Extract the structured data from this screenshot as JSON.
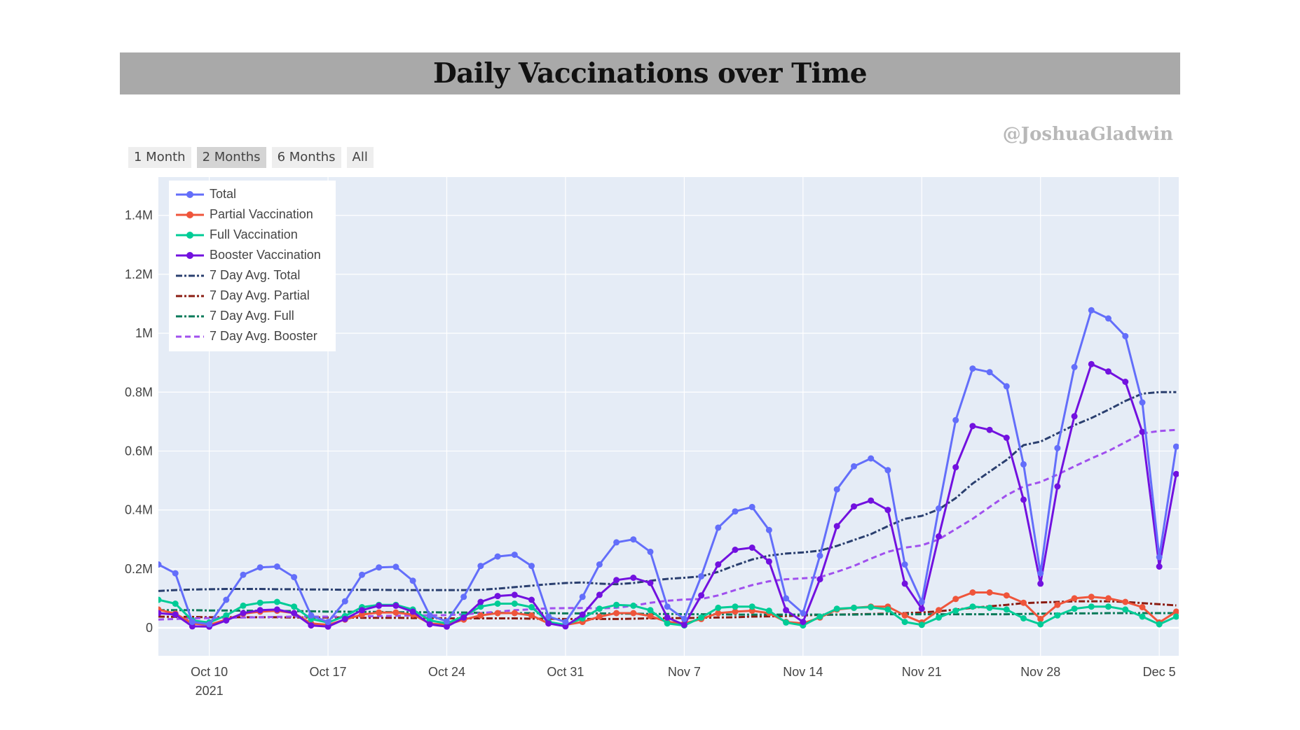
{
  "title": "Daily Vaccinations over Time",
  "watermark": "@JoshuaGladwin",
  "range_buttons": [
    {
      "label": "1 Month",
      "active": false
    },
    {
      "label": "2 Months",
      "active": true
    },
    {
      "label": "6 Months",
      "active": false
    },
    {
      "label": "All",
      "active": false
    }
  ],
  "chart_data": {
    "type": "line",
    "x_start": "2021-10-07",
    "x_end": "2021-12-06",
    "x_tick_labels": [
      "Oct 10",
      "Oct 17",
      "Oct 24",
      "Oct 31",
      "Nov 7",
      "Nov 14",
      "Nov 21",
      "Nov 28",
      "Dec 5"
    ],
    "x_tick_dates": [
      "2021-10-10",
      "2021-10-17",
      "2021-10-24",
      "2021-10-31",
      "2021-11-07",
      "2021-11-14",
      "2021-11-21",
      "2021-11-28",
      "2021-12-05"
    ],
    "x_year_label": "2021",
    "y_ticks": [
      0,
      200000,
      400000,
      600000,
      800000,
      1000000,
      1200000,
      1400000
    ],
    "y_tick_labels": [
      "0",
      "0.2M",
      "0.4M",
      "0.6M",
      "0.8M",
      "1M",
      "1.2M",
      "1.4M"
    ],
    "ylim": [
      -95000,
      1530000
    ],
    "grid": true,
    "legend_position": "top-left",
    "plot_background": "#e5ecf6",
    "series": [
      {
        "name": "Total",
        "color": "#636efa",
        "style": "solid-markers",
        "values": [
          215000,
          185000,
          20000,
          12000,
          95000,
          180000,
          205000,
          208000,
          172000,
          42000,
          20000,
          90000,
          180000,
          205000,
          207000,
          160000,
          42000,
          22000,
          105000,
          210000,
          242000,
          248000,
          210000,
          38000,
          20000,
          105000,
          215000,
          290000,
          300000,
          258000,
          72000,
          30000,
          175000,
          340000,
          395000,
          410000,
          332000,
          100000,
          50000,
          245000,
          470000,
          548000,
          575000,
          535000,
          215000,
          88000,
          405000,
          705000,
          880000,
          868000,
          820000,
          555000,
          185000,
          610000,
          885000,
          1078000,
          1050000,
          990000,
          765000,
          240000,
          615000
        ]
      },
      {
        "name": "Partial Vaccination",
        "color": "#ef553b",
        "style": "solid-markers",
        "values": [
          62000,
          48000,
          15000,
          10000,
          28000,
          48000,
          55000,
          58000,
          50000,
          15000,
          10000,
          28000,
          45000,
          52000,
          52000,
          45000,
          15000,
          10000,
          28000,
          42000,
          50000,
          50000,
          42000,
          15000,
          10000,
          20000,
          38000,
          50000,
          50000,
          40000,
          20000,
          15000,
          30000,
          50000,
          55000,
          58000,
          50000,
          20000,
          15000,
          35000,
          62000,
          68000,
          72000,
          72000,
          42000,
          18000,
          60000,
          98000,
          120000,
          120000,
          110000,
          85000,
          30000,
          78000,
          100000,
          105000,
          100000,
          88000,
          70000,
          18000,
          55000
        ]
      },
      {
        "name": "Full Vaccination",
        "color": "#00cc96",
        "style": "solid-markers",
        "values": [
          95000,
          82000,
          25000,
          18000,
          42000,
          75000,
          85000,
          88000,
          72000,
          30000,
          18000,
          40000,
          70000,
          78000,
          78000,
          62000,
          25000,
          15000,
          40000,
          72000,
          82000,
          82000,
          70000,
          20000,
          10000,
          32000,
          65000,
          78000,
          75000,
          60000,
          15000,
          8000,
          35000,
          68000,
          72000,
          72000,
          58000,
          18000,
          8000,
          38000,
          65000,
          68000,
          70000,
          62000,
          20000,
          10000,
          35000,
          58000,
          72000,
          68000,
          62000,
          32000,
          12000,
          42000,
          65000,
          72000,
          72000,
          62000,
          38000,
          12000,
          38000
        ]
      },
      {
        "name": "Booster Vaccination",
        "color": "#7211df",
        "style": "solid-markers",
        "values": [
          50000,
          45000,
          5000,
          4000,
          25000,
          50000,
          60000,
          62000,
          50000,
          8000,
          4000,
          30000,
          60000,
          75000,
          75000,
          55000,
          12000,
          4000,
          35000,
          88000,
          108000,
          112000,
          95000,
          15000,
          5000,
          45000,
          112000,
          162000,
          170000,
          152000,
          35000,
          10000,
          110000,
          215000,
          265000,
          272000,
          225000,
          60000,
          20000,
          165000,
          345000,
          412000,
          432000,
          400000,
          150000,
          65000,
          310000,
          545000,
          685000,
          672000,
          645000,
          435000,
          150000,
          480000,
          718000,
          895000,
          870000,
          835000,
          665000,
          208000,
          522000
        ]
      },
      {
        "name": "7 Day Avg. Total",
        "color": "#2a3f6f",
        "style": "dashdot",
        "values": [
          125000,
          128000,
          130000,
          131000,
          132000,
          132000,
          132000,
          131000,
          131000,
          130000,
          130000,
          129000,
          129000,
          129000,
          128000,
          128000,
          128000,
          128000,
          128000,
          129000,
          133000,
          138000,
          143000,
          148000,
          152000,
          154000,
          150000,
          148000,
          152000,
          160000,
          166000,
          170000,
          175000,
          190000,
          212000,
          232000,
          245000,
          252000,
          256000,
          262000,
          278000,
          298000,
          318000,
          345000,
          370000,
          380000,
          402000,
          440000,
          490000,
          530000,
          570000,
          620000,
          632000,
          660000,
          688000,
          712000,
          740000,
          770000,
          795000,
          800000,
          800000
        ]
      },
      {
        "name": "7 Day Avg. Partial",
        "color": "#8b1c12",
        "style": "dashdot",
        "values": [
          38000,
          37000,
          37000,
          36000,
          36000,
          36000,
          36000,
          36000,
          35000,
          35000,
          35000,
          35000,
          34000,
          34000,
          34000,
          33000,
          33000,
          32000,
          32000,
          32000,
          32000,
          32000,
          31000,
          31000,
          30000,
          30000,
          30000,
          30000,
          31000,
          32000,
          33000,
          33000,
          34000,
          35000,
          36000,
          38000,
          39000,
          40000,
          42000,
          44000,
          45000,
          46000,
          47000,
          48000,
          50000,
          52000,
          56000,
          62000,
          68000,
          73000,
          78000,
          84000,
          86000,
          88000,
          90000,
          90000,
          90000,
          88000,
          84000,
          80000,
          76000
        ]
      },
      {
        "name": "7 Day Avg. Full",
        "color": "#0a7a5a",
        "style": "dashdot",
        "values": [
          60000,
          60000,
          60000,
          59000,
          59000,
          58000,
          58000,
          57000,
          57000,
          56000,
          55000,
          55000,
          54000,
          54000,
          53000,
          53000,
          53000,
          52000,
          52000,
          51000,
          51000,
          50000,
          50000,
          50000,
          49000,
          49000,
          49000,
          48000,
          48000,
          47000,
          47000,
          46000,
          46000,
          46000,
          45000,
          45000,
          45000,
          45000,
          45000,
          45000,
          45000,
          45000,
          46000,
          46000,
          46000,
          46000,
          46000,
          46000,
          46000,
          46000,
          46000,
          47000,
          48000,
          48000,
          49000,
          49000,
          50000,
          50000,
          50000,
          50000,
          50000
        ]
      },
      {
        "name": "7 Day Avg. Booster",
        "color": "#a050ee",
        "style": "dash",
        "values": [
          28000,
          30000,
          32000,
          33000,
          34000,
          35000,
          36000,
          37000,
          38000,
          38000,
          38000,
          38000,
          39000,
          40000,
          41000,
          42000,
          42000,
          43000,
          46000,
          50000,
          55000,
          60000,
          63000,
          66000,
          67000,
          67000,
          66000,
          68000,
          75000,
          85000,
          92000,
          96000,
          98000,
          110000,
          128000,
          145000,
          158000,
          165000,
          168000,
          172000,
          190000,
          210000,
          235000,
          258000,
          272000,
          280000,
          300000,
          335000,
          370000,
          410000,
          450000,
          480000,
          495000,
          520000,
          548000,
          575000,
          600000,
          630000,
          660000,
          668000,
          672000
        ]
      }
    ]
  }
}
